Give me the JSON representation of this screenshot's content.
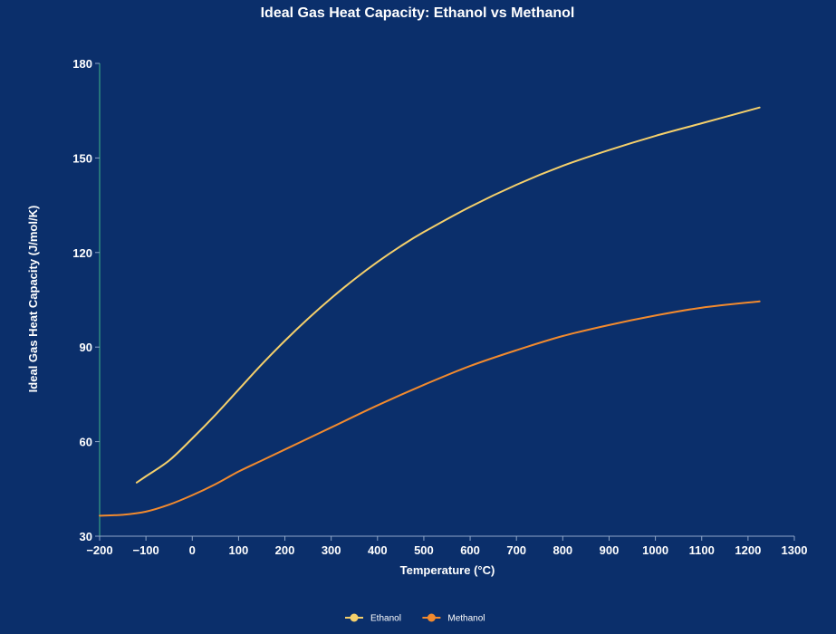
{
  "chart_data": {
    "type": "line",
    "title": "Ideal Gas Heat Capacity: Ethanol vs Methanol",
    "xlabel": "Temperature (°C)",
    "ylabel": "Ideal Gas Heat Capacity (J/mol/K)",
    "xlim": [
      -200,
      1300
    ],
    "ylim": [
      30,
      180
    ],
    "xticks": [
      -200,
      -100,
      0,
      100,
      200,
      300,
      400,
      500,
      600,
      700,
      800,
      900,
      1000,
      1100,
      1200,
      1300
    ],
    "yticks": [
      30,
      60,
      90,
      120,
      150,
      180
    ],
    "tick_labels_x": [
      "−200",
      "−100",
      "0",
      "100",
      "200",
      "300",
      "400",
      "500",
      "600",
      "700",
      "800",
      "900",
      "1000",
      "1100",
      "1200",
      "1300"
    ],
    "tick_labels_y": [
      "30",
      "60",
      "90",
      "120",
      "150",
      "180"
    ],
    "grid": false,
    "legend_position": "bottom-center",
    "series": [
      {
        "name": "Ethanol",
        "color": "#f5d06b",
        "x": [
          -120,
          -100,
          -50,
          0,
          50,
          100,
          150,
          200,
          250,
          300,
          350,
          400,
          450,
          500,
          600,
          700,
          800,
          900,
          1000,
          1100,
          1225
        ],
        "y": [
          47,
          49,
          54,
          61,
          68.5,
          76.5,
          84.5,
          92,
          99,
          105.5,
          111.5,
          117,
          122,
          126.5,
          134.5,
          141.5,
          147.5,
          152.5,
          157,
          161,
          166
        ]
      },
      {
        "name": "Methanol",
        "color": "#f28a2e",
        "x": [
          -200,
          -150,
          -100,
          -50,
          0,
          50,
          100,
          150,
          200,
          300,
          400,
          500,
          600,
          700,
          800,
          900,
          1000,
          1100,
          1225
        ],
        "y": [
          36.5,
          36.8,
          37.8,
          40,
          43,
          46.5,
          50.5,
          54,
          57.5,
          64.5,
          71.5,
          78,
          84,
          89,
          93.5,
          97,
          100,
          102.5,
          104.5
        ]
      }
    ]
  }
}
